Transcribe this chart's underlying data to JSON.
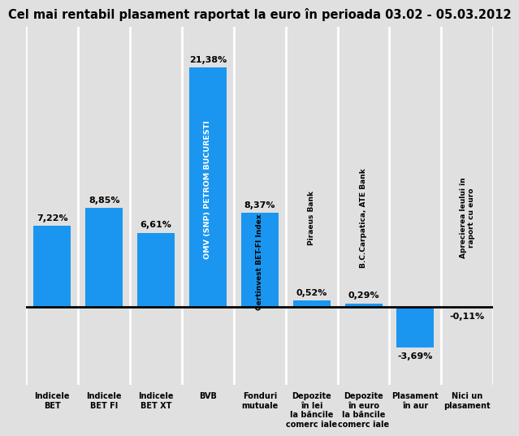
{
  "title": "Cel mai rentabil plasament raportat la euro în perioada 03.02 - 05.03.2012",
  "values": [
    7.22,
    8.85,
    6.61,
    21.38,
    8.37,
    0.52,
    0.29,
    -3.69,
    -0.11
  ],
  "bar_colors": [
    "#1a96f0",
    "#1a96f0",
    "#1a96f0",
    "#1a96f0",
    "#1a96f0",
    "#1a96f0",
    "#1a96f0",
    "#1a96f0",
    "#1a96f0"
  ],
  "bar_labels": [
    "7,22%",
    "8,85%",
    "6,61%",
    "21,38%",
    "8,37%",
    "0,52%",
    "0,29%",
    "-3,69%",
    "-0,11%"
  ],
  "x_labels": [
    "Indicele\nBET",
    "Indicele\nBET FI",
    "Indicele\nBET XT",
    "BVB",
    "Fonduri\nmutuale",
    "Depozite\nîn lei\nla băncile\ncomerc iale",
    "Depozite\nîn euro\nla băncile\ncomerc iale",
    "Plasament\nîn aur",
    "Nici un\nplasament"
  ],
  "inside_label_BVB": "OMV (SNP) PETROM BUCURESTI",
  "inside_label_fonduri": "Certinvest BET-FI Index",
  "above_label_piraeus": "Piraeus Bank",
  "above_label_bc": "B.C.Carpatica, ATE Bank",
  "above_label_apreciere": "Aprecierea leului în\nraport cu euro",
  "background_color": "#e0e0e0",
  "title_fontsize": 10.5,
  "ylim_min": -7,
  "ylim_max": 25
}
